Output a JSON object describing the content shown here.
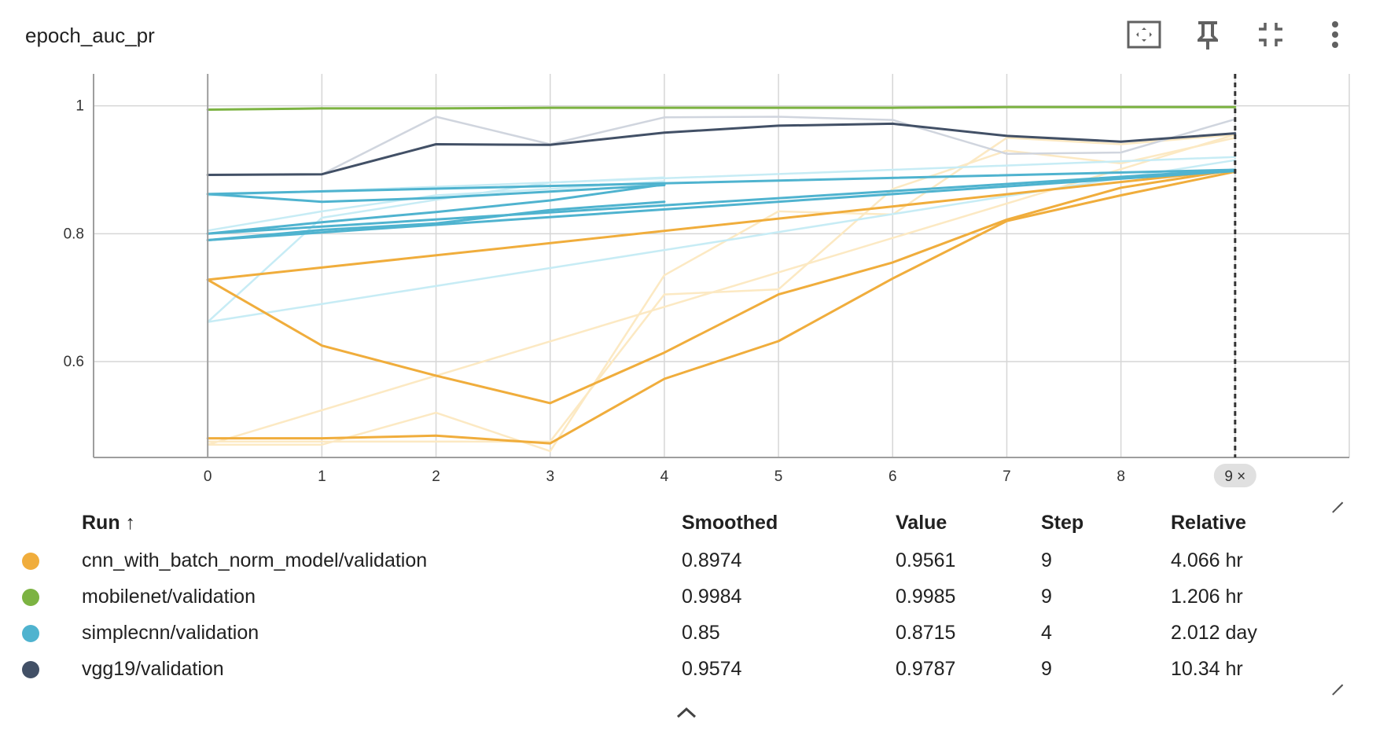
{
  "header": {
    "title": "epoch_auc_pr",
    "icons": [
      "fit-to-data-icon",
      "pin-icon",
      "collapse-icon",
      "more-vert-icon"
    ]
  },
  "hover": {
    "step_label": "9 ×"
  },
  "table": {
    "headers": {
      "run": "Run ↑",
      "smoothed": "Smoothed",
      "value": "Value",
      "step": "Step",
      "relative": "Relative"
    },
    "rows": [
      {
        "run": "cnn_with_batch_norm_model/validation",
        "color": "#f0ad3c",
        "smoothed": "0.8974",
        "value": "0.9561",
        "step": "9",
        "relative": "4.066 hr"
      },
      {
        "run": "mobilenet/validation",
        "color": "#7cb342",
        "smoothed": "0.9984",
        "value": "0.9985",
        "step": "9",
        "relative": "1.206 hr"
      },
      {
        "run": "simplecnn/validation",
        "color": "#4fb3cf",
        "smoothed": "0.85",
        "value": "0.8715",
        "step": "4",
        "relative": "2.012 day"
      },
      {
        "run": "vgg19/validation",
        "color": "#425066",
        "smoothed": "0.9574",
        "value": "0.9787",
        "step": "9",
        "relative": "10.34 hr"
      }
    ]
  },
  "chart_data": {
    "type": "line",
    "title": "epoch_auc_pr",
    "xlabel": "",
    "ylabel": "",
    "x_ticks": [
      0,
      1,
      2,
      3,
      4,
      5,
      6,
      7,
      8,
      9
    ],
    "y_ticks": [
      0.6,
      0.8,
      1
    ],
    "xlim": [
      -1,
      10
    ],
    "ylim": [
      0.45,
      1.05
    ],
    "hover_step": 9,
    "series": [
      {
        "name": "cnn_with_batch_norm_model/validation",
        "kind": "raw",
        "color": "#fce9c3",
        "x": [
          0,
          1,
          2,
          3,
          4,
          5,
          6,
          7,
          8,
          9
        ],
        "y": [
          0.47,
          0.47,
          0.52,
          0.46,
          0.735,
          0.835,
          0.83,
          0.95,
          0.94,
          0.955
        ]
      },
      {
        "name": "cnn_with_batch_norm_model/validation",
        "kind": "raw",
        "color": "#fce9c3",
        "x": [
          0,
          3,
          4,
          5,
          6,
          7,
          8,
          9
        ],
        "y": [
          0.475,
          0.475,
          0.705,
          0.713,
          0.87,
          0.93,
          0.91,
          0.95
        ]
      },
      {
        "name": "cnn_with_batch_norm_model/validation",
        "kind": "raw",
        "color": "#fce9c3",
        "x": [
          0,
          9
        ],
        "y": [
          0.47,
          0.955
        ]
      },
      {
        "name": "cnn_with_batch_norm_model/validation",
        "kind": "smoothed",
        "color": "#f0ad3c",
        "x": [
          0,
          9
        ],
        "y": [
          0.728,
          0.9
        ]
      },
      {
        "name": "cnn_with_batch_norm_model/validation",
        "kind": "smoothed",
        "color": "#f0ad3c",
        "x": [
          0,
          1,
          2,
          3,
          4,
          5,
          6,
          7,
          8,
          9
        ],
        "y": [
          0.728,
          0.625,
          0.578,
          0.535,
          0.614,
          0.705,
          0.755,
          0.822,
          0.872,
          0.9
        ]
      },
      {
        "name": "cnn_with_batch_norm_model/validation",
        "kind": "smoothed",
        "color": "#f0ad3c",
        "x": [
          0,
          1,
          2,
          3,
          4,
          5,
          6,
          7,
          8,
          9
        ],
        "y": [
          0.48,
          0.48,
          0.484,
          0.472,
          0.573,
          0.632,
          0.73,
          0.82,
          0.86,
          0.897
        ]
      },
      {
        "name": "mobilenet/validation",
        "kind": "smoothed",
        "color": "#7cb342",
        "x": [
          0,
          1,
          2,
          3,
          4,
          5,
          6,
          7,
          8,
          9
        ],
        "y": [
          0.994,
          0.996,
          0.996,
          0.997,
          0.997,
          0.997,
          0.997,
          0.998,
          0.998,
          0.998
        ]
      },
      {
        "name": "vgg19/validation",
        "kind": "raw",
        "color": "#d0d5de",
        "x": [
          0,
          1,
          2,
          3,
          4,
          5,
          6,
          7,
          8,
          9
        ],
        "y": [
          0.892,
          0.893,
          0.983,
          0.94,
          0.982,
          0.983,
          0.978,
          0.925,
          0.927,
          0.979
        ]
      },
      {
        "name": "vgg19/validation",
        "kind": "smoothed",
        "color": "#425066",
        "x": [
          0,
          1,
          2,
          3,
          4,
          5,
          6,
          7,
          8,
          9
        ],
        "y": [
          0.892,
          0.893,
          0.94,
          0.939,
          0.958,
          0.969,
          0.972,
          0.953,
          0.944,
          0.957
        ]
      },
      {
        "name": "simplecnn/validation",
        "kind": "raw",
        "color": "#c7ecf5",
        "x": [
          0,
          1,
          2,
          3,
          4
        ],
        "y": [
          0.662,
          0.825,
          0.853,
          0.88,
          0.888
        ]
      },
      {
        "name": "simplecnn/validation",
        "kind": "raw",
        "color": "#c7ecf5",
        "x": [
          0,
          1,
          2,
          3,
          4
        ],
        "y": [
          0.805,
          0.835,
          0.86,
          0.87,
          0.882
        ]
      },
      {
        "name": "simplecnn/validation",
        "kind": "raw",
        "color": "#c7ecf5",
        "x": [
          0,
          9
        ],
        "y": [
          0.662,
          0.915
        ]
      },
      {
        "name": "simplecnn/validation",
        "kind": "raw",
        "color": "#c7ecf5",
        "x": [
          0,
          6,
          9
        ],
        "y": [
          0.86,
          0.9,
          0.92
        ]
      },
      {
        "name": "simplecnn/validation",
        "kind": "smoothed",
        "color": "#4fb3cf",
        "x": [
          0,
          1,
          2,
          3,
          4
        ],
        "y": [
          0.862,
          0.85,
          0.856,
          0.866,
          0.876
        ]
      },
      {
        "name": "simplecnn/validation",
        "kind": "smoothed",
        "color": "#4fb3cf",
        "x": [
          0,
          1,
          2,
          3,
          4
        ],
        "y": [
          0.79,
          0.806,
          0.816,
          0.837,
          0.85
        ]
      },
      {
        "name": "simplecnn/validation",
        "kind": "smoothed",
        "color": "#4fb3cf",
        "x": [
          0,
          1,
          2,
          3,
          4
        ],
        "y": [
          0.8,
          0.818,
          0.834,
          0.852,
          0.877
        ]
      },
      {
        "name": "simplecnn/validation",
        "kind": "smoothed",
        "color": "#4fb3cf",
        "x": [
          0,
          9
        ],
        "y": [
          0.862,
          0.9
        ]
      },
      {
        "name": "simplecnn/validation",
        "kind": "smoothed",
        "color": "#4fb3cf",
        "x": [
          0,
          9
        ],
        "y": [
          0.79,
          0.898
        ]
      },
      {
        "name": "simplecnn/validation",
        "kind": "smoothed",
        "color": "#4fb3cf",
        "x": [
          0,
          9
        ],
        "y": [
          0.8,
          0.9
        ]
      }
    ]
  }
}
